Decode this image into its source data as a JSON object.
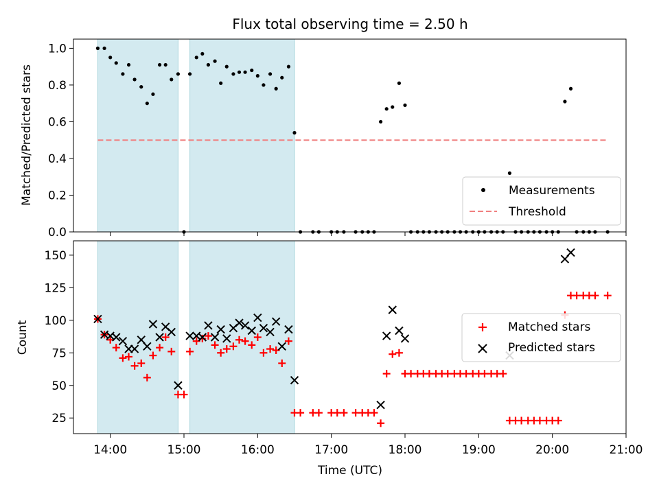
{
  "chart_data": [
    {
      "type": "scatter",
      "title": "Flux total observing time = 2.50 h",
      "xlabel": "",
      "ylabel": "Matched/Predicted stars",
      "xlim_hours": [
        13.5,
        21.0
      ],
      "ylim": [
        0,
        1.05
      ],
      "yticks": [
        0.0,
        0.2,
        0.4,
        0.6,
        0.8,
        1.0
      ],
      "ytick_labels": [
        "0.0",
        "0.2",
        "0.4",
        "0.6",
        "0.8",
        "1.0"
      ],
      "shaded_intervals_hours": [
        [
          13.83,
          14.92
        ],
        [
          15.08,
          16.5
        ]
      ],
      "shade_color": "#d3eaf0",
      "series": [
        {
          "name": "Measurements",
          "marker": "dot",
          "color": "#000000",
          "x_hours": [
            13.83,
            13.92,
            14.0,
            14.08,
            14.17,
            14.25,
            14.33,
            14.42,
            14.5,
            14.58,
            14.67,
            14.75,
            14.83,
            14.92,
            15.0,
            15.08,
            15.17,
            15.25,
            15.33,
            15.42,
            15.5,
            15.58,
            15.67,
            15.75,
            15.83,
            15.92,
            16.0,
            16.08,
            16.17,
            16.25,
            16.33,
            16.42,
            16.5,
            16.58,
            16.75,
            16.83,
            17.0,
            17.08,
            17.17,
            17.33,
            17.42,
            17.5,
            17.58,
            17.67,
            17.75,
            17.83,
            17.92,
            18.0,
            18.08,
            18.17,
            18.25,
            18.33,
            18.42,
            18.5,
            18.58,
            18.67,
            18.75,
            18.83,
            18.92,
            19.0,
            19.08,
            19.17,
            19.25,
            19.33,
            19.42,
            19.5,
            19.58,
            19.67,
            19.75,
            19.83,
            19.92,
            20.0,
            20.08,
            20.17,
            20.25,
            20.33,
            20.42,
            20.5,
            20.58,
            20.75
          ],
          "y": [
            1.0,
            1.0,
            0.95,
            0.92,
            0.86,
            0.91,
            0.83,
            0.79,
            0.7,
            0.75,
            0.91,
            0.91,
            0.83,
            0.86,
            0.0,
            0.86,
            0.95,
            0.97,
            0.91,
            0.93,
            0.81,
            0.9,
            0.86,
            0.87,
            0.87,
            0.88,
            0.85,
            0.8,
            0.86,
            0.78,
            0.84,
            0.9,
            0.54,
            0.0,
            0.0,
            0.0,
            0.0,
            0.0,
            0.0,
            0.0,
            0.0,
            0.0,
            0.0,
            0.6,
            0.67,
            0.68,
            0.81,
            0.69,
            0.0,
            0.0,
            0.0,
            0.0,
            0.0,
            0.0,
            0.0,
            0.0,
            0.0,
            0.0,
            0.0,
            0.0,
            0.0,
            0.0,
            0.0,
            0.0,
            0.32,
            0.0,
            0.0,
            0.0,
            0.0,
            0.0,
            0.0,
            0.0,
            0.0,
            0.71,
            0.78,
            0.0,
            0.0,
            0.0,
            0.0,
            0.0
          ]
        },
        {
          "name": "Threshold",
          "marker": "dashed-line",
          "color": "#f08080",
          "x_hours": [
            13.83,
            20.75
          ],
          "y": [
            0.5,
            0.5
          ]
        }
      ],
      "legend": [
        "Measurements",
        "Threshold"
      ],
      "legend_position": "bottom-right"
    },
    {
      "type": "scatter",
      "title": "",
      "xlabel": "Time (UTC)",
      "ylabel": "Count",
      "xlim_hours": [
        13.5,
        21.0
      ],
      "ylim": [
        13,
        161
      ],
      "xticks_hours": [
        14,
        15,
        16,
        17,
        18,
        19,
        20,
        21
      ],
      "xtick_labels": [
        "14:00",
        "15:00",
        "16:00",
        "17:00",
        "18:00",
        "19:00",
        "20:00",
        "21:00"
      ],
      "yticks": [
        25,
        50,
        75,
        100,
        125,
        150
      ],
      "ytick_labels": [
        "25",
        "50",
        "75",
        "100",
        "125",
        "150"
      ],
      "shaded_intervals_hours": [
        [
          13.83,
          14.92
        ],
        [
          15.08,
          16.5
        ]
      ],
      "shade_color": "#d3eaf0",
      "series": [
        {
          "name": "Matched stars",
          "marker": "plus",
          "color": "#ff0000",
          "x_hours": [
            13.83,
            13.92,
            14.0,
            14.08,
            14.17,
            14.25,
            14.33,
            14.42,
            14.5,
            14.58,
            14.67,
            14.75,
            14.83,
            14.92,
            15.0,
            15.08,
            15.17,
            15.25,
            15.33,
            15.42,
            15.5,
            15.58,
            15.67,
            15.75,
            15.83,
            15.92,
            16.0,
            16.08,
            16.17,
            16.25,
            16.33,
            16.42,
            16.5,
            16.58,
            16.75,
            16.83,
            17.0,
            17.08,
            17.17,
            17.33,
            17.42,
            17.5,
            17.58,
            17.67,
            17.75,
            17.83,
            17.92,
            18.0,
            18.08,
            18.17,
            18.25,
            18.33,
            18.42,
            18.5,
            18.58,
            18.67,
            18.75,
            18.83,
            18.92,
            19.0,
            19.08,
            19.17,
            19.25,
            19.33,
            19.42,
            19.5,
            19.58,
            19.67,
            19.75,
            19.83,
            19.92,
            20.0,
            20.08,
            20.17,
            20.25,
            20.33,
            20.42,
            20.5,
            20.58,
            20.75
          ],
          "y": [
            101,
            89,
            85,
            79,
            71,
            72,
            65,
            67,
            56,
            73,
            79,
            87,
            76,
            43,
            43,
            76,
            84,
            86,
            88,
            81,
            75,
            78,
            80,
            85,
            84,
            81,
            87,
            75,
            78,
            77,
            67,
            84,
            29,
            29,
            29,
            29,
            29,
            29,
            29,
            29,
            29,
            29,
            29,
            21,
            59,
            74,
            75,
            59,
            59,
            59,
            59,
            59,
            59,
            59,
            59,
            59,
            59,
            59,
            59,
            59,
            59,
            59,
            59,
            59,
            23,
            23,
            23,
            23,
            23,
            23,
            23,
            23,
            23,
            104,
            119,
            119,
            119,
            119,
            119,
            119
          ]
        },
        {
          "name": "Predicted stars",
          "marker": "x",
          "color": "#000000",
          "x_hours": [
            13.83,
            13.92,
            14.0,
            14.08,
            14.17,
            14.25,
            14.33,
            14.42,
            14.5,
            14.58,
            14.67,
            14.75,
            14.83,
            14.92,
            15.08,
            15.17,
            15.25,
            15.33,
            15.42,
            15.5,
            15.58,
            15.67,
            15.75,
            15.83,
            15.92,
            16.0,
            16.08,
            16.17,
            16.25,
            16.33,
            16.42,
            16.5,
            17.67,
            17.75,
            17.83,
            17.92,
            18.0,
            19.42,
            20.17,
            20.25
          ],
          "y": [
            101,
            89,
            88,
            87,
            84,
            78,
            78,
            85,
            80,
            97,
            87,
            95,
            91,
            50,
            88,
            88,
            87,
            96,
            87,
            93,
            86,
            94,
            98,
            96,
            92,
            102,
            94,
            91,
            99,
            80,
            93,
            54,
            35,
            88,
            108,
            92,
            86,
            73,
            147,
            152
          ]
        }
      ],
      "legend": [
        "Matched stars",
        "Predicted stars"
      ],
      "legend_position": "center-right"
    }
  ]
}
